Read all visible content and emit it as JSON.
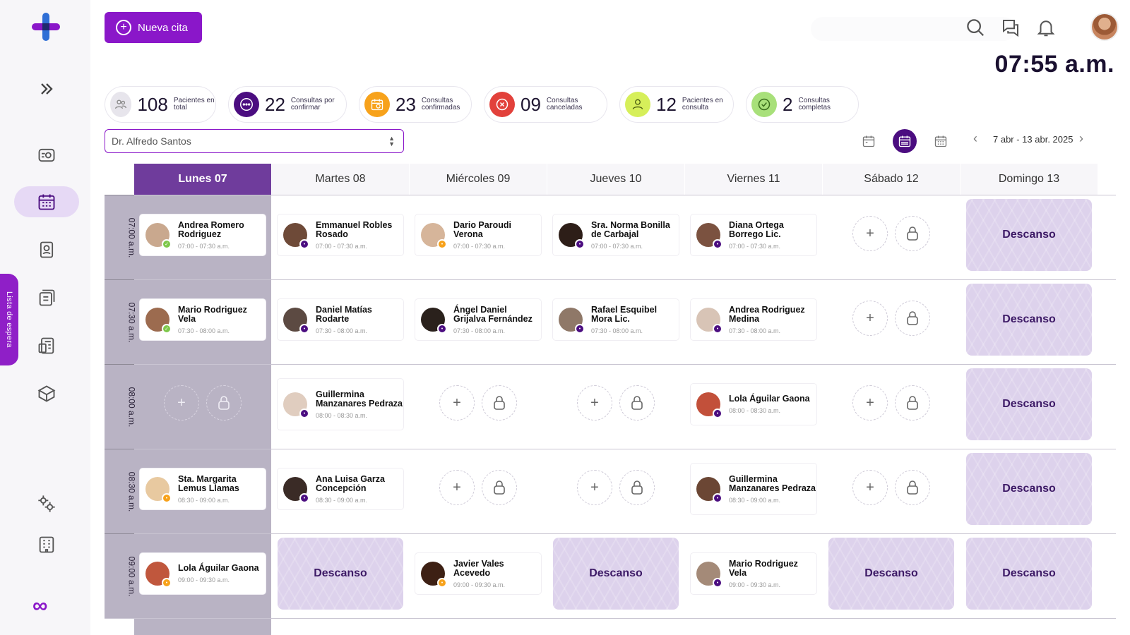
{
  "header": {
    "new_button_label": "Nueva cita",
    "clock": "07:55 a.m."
  },
  "sidebar": {
    "waitlist_label": "Lista de espera"
  },
  "stats": [
    {
      "number": "108",
      "label": "Pacientes en total",
      "color": "#e7e5ec"
    },
    {
      "number": "22",
      "label": "Consultas por confirmar",
      "color": "#4b0d80"
    },
    {
      "number": "23",
      "label": "Consultas confirmadas",
      "color": "#f7a21b"
    },
    {
      "number": "09",
      "label": "Consultas canceladas",
      "color": "#e2413b"
    },
    {
      "number": "12",
      "label": "Pacientes en consulta",
      "color": "#d6ef5a"
    },
    {
      "number": "2",
      "label": "Consultas completas",
      "color": "#a8e07a"
    }
  ],
  "doctor_select": {
    "value": "Dr. Alfredo Santos"
  },
  "date_range": "7 abr - 13 abr. 2025",
  "days": [
    "Lunes 07",
    "Martes 08",
    "Miércoles 09",
    "Jueves 10",
    "Viernes 11",
    "Sábado 12",
    "Domingo 13"
  ],
  "times": [
    "07:00 a.m.",
    "07:30 a.m.",
    "08:00 a.m.",
    "08:30 a.m.",
    "09:00 a.m."
  ],
  "rest_label": "Descanso",
  "appointments": {
    "r0": [
      {
        "name": "Andrea Romero Rodriguez",
        "time": "07:00 - 07:30 a.m."
      },
      {
        "name": "Emmanuel Robles Rosado",
        "time": "07:00 - 07:30 a.m."
      },
      {
        "name": "Dario Paroudi Verona",
        "time": "07:00 - 07:30 a.m."
      },
      {
        "name": "Sra. Norma Bonilla de Carbajal",
        "time": "07:00 - 07:30 a.m."
      },
      {
        "name": "Diana Ortega Borrego Lic.",
        "time": "07:00 - 07:30 a.m."
      }
    ],
    "r1": [
      {
        "name": "Mario Rodriguez Vela",
        "time": "07:30 - 08:00 a.m."
      },
      {
        "name": "Daniel Matías Rodarte",
        "time": "07:30 - 08:00 a.m."
      },
      {
        "name": "Ángel Daniel Grijalva Fernández",
        "time": "07:30 - 08:00 a.m."
      },
      {
        "name": "Rafael Esquibel Mora Lic.",
        "time": "07:30 - 08:00 a.m."
      },
      {
        "name": "Andrea Rodriguez Medina",
        "time": "07:30 - 08:00 a.m."
      }
    ],
    "r2": [
      {
        "name": "Guillermina Manzanares Pedraza",
        "time": "08:00 - 08:30 a.m."
      },
      {
        "name": "Lola Águilar Gaona",
        "time": "08:00 - 08:30 a.m."
      }
    ],
    "r3": [
      {
        "name": "Sta. Margarita Lemus Llamas",
        "time": "08:30 - 09:00 a.m."
      },
      {
        "name": "Ana Luisa Garza Concepción",
        "time": "08:30 - 09:00 a.m."
      },
      {
        "name": "Guillermina Manzanares Pedraza",
        "time": "08:30 - 09:00 a.m."
      }
    ],
    "r4": [
      {
        "name": "Lola Águilar Gaona",
        "time": "09:00 - 09:30 a.m."
      },
      {
        "name": "Javier Vales Acevedo",
        "time": "09:00 - 09:30 a.m."
      },
      {
        "name": "Mario Rodriguez Vela",
        "time": "09:00 - 09:30 a.m."
      }
    ]
  },
  "colors": {
    "accent": "#8a17c9",
    "dark_purple": "#4b0d80",
    "today_column": "#6f3c9c"
  }
}
